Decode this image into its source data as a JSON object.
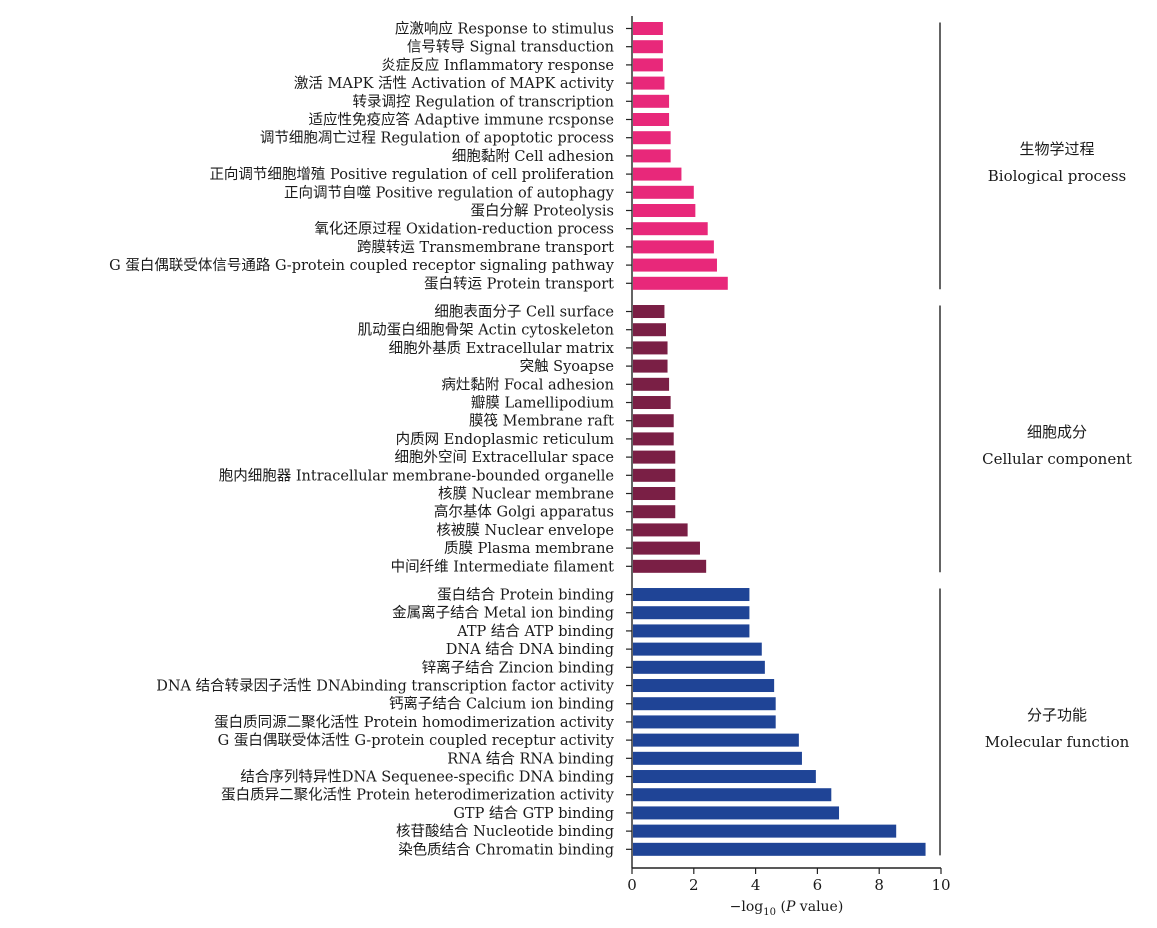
{
  "chart_data": {
    "type": "bar",
    "orientation": "horizontal",
    "xlabel": "−log10 (P value)",
    "xlabel_parts": {
      "prefix": "−log",
      "subscript": "10",
      "open": " (",
      "italic": "P",
      "suffix": " value)"
    },
    "xlim": [
      0,
      10
    ],
    "xticks": [
      "0",
      "2",
      "4",
      "6",
      "8",
      "10"
    ],
    "grid": false,
    "groups": [
      {
        "label_zh": "生物学过程",
        "label_en": "Biological process",
        "color": "#e8287a",
        "bars": [
          {
            "label": "应激响应 Response to stimulus",
            "value": 1.0
          },
          {
            "label": "信号转导 Signal transduction",
            "value": 1.0
          },
          {
            "label": "炎症反应 Inflammatory response",
            "value": 1.0
          },
          {
            "label": "激活 MAPK 活性 Activation of MAPK activity",
            "value": 1.05
          },
          {
            "label": "转录调控 Regulation of transcription",
            "value": 1.2
          },
          {
            "label": "适应性免疫应答 Adaptive immune rcsponse",
            "value": 1.2
          },
          {
            "label": "调节细胞凋亡过程 Regulation of apoptotic process",
            "value": 1.25
          },
          {
            "label": "细胞黏附 Cell adhesion",
            "value": 1.25
          },
          {
            "label": "正向调节细胞增殖 Positive regulation of cell proliferation",
            "value": 1.6
          },
          {
            "label": "正向调节自噬 Positive regulation of autophagy",
            "value": 2.0
          },
          {
            "label": "蛋白分解 Proteolysis",
            "value": 2.05
          },
          {
            "label": "氧化还原过程 Oxidation-reduction process",
            "value": 2.45
          },
          {
            "label": "跨膜转运 Transmembrane transport",
            "value": 2.65
          },
          {
            "label": "G 蛋白偶联受体信号通路 G-protein coupled receptor signaling pathway",
            "value": 2.75
          },
          {
            "label": "蛋白转运 Protein transport",
            "value": 3.1
          }
        ]
      },
      {
        "label_zh": "细胞成分",
        "label_en": "Cellular component",
        "color": "#7a1f45",
        "bars": [
          {
            "label": "细胞表面分子 Cell surface",
            "value": 1.05
          },
          {
            "label": "肌动蛋白细胞骨架 Actin cytoskeleton",
            "value": 1.1
          },
          {
            "label": "细胞外基质 Extracellular matrix",
            "value": 1.15
          },
          {
            "label": "突触 Syoapse",
            "value": 1.15
          },
          {
            "label": "病灶黏附 Focal adhesion",
            "value": 1.2
          },
          {
            "label": "瓣膜 Lamellipodium",
            "value": 1.25
          },
          {
            "label": "膜筏 Membrane raft",
            "value": 1.35
          },
          {
            "label": "内质网 Endoplasmic reticulum",
            "value": 1.35
          },
          {
            "label": "细胞外空间 Extracellular space",
            "value": 1.4
          },
          {
            "label": "胞内细胞器 Intracellular membrane-bounded organelle",
            "value": 1.4
          },
          {
            "label": "核膜 Nuclear membrane",
            "value": 1.4
          },
          {
            "label": "高尔基体 Golgi apparatus",
            "value": 1.4
          },
          {
            "label": "核被膜 Nuclear envelope",
            "value": 1.8
          },
          {
            "label": "质膜 Plasma membrane",
            "value": 2.2
          },
          {
            "label": "中间纤维 Intermediate filament",
            "value": 2.4
          }
        ]
      },
      {
        "label_zh": "分子功能",
        "label_en": "Molecular function",
        "color": "#1f4496",
        "bars": [
          {
            "label": "蛋白结合 Protein binding",
            "value": 3.8
          },
          {
            "label": "金属离子结合 Metal ion binding",
            "value": 3.8
          },
          {
            "label": "ATP 结合 ATP binding",
            "value": 3.8
          },
          {
            "label": "DNA 结合 DNA binding",
            "value": 4.2
          },
          {
            "label": "锌离子结合 Zincion binding",
            "value": 4.3
          },
          {
            "label": "DNA 结合转录因子活性 DNAbinding transcription factor activity",
            "value": 4.6
          },
          {
            "label": "钙离子结合 Calcium ion binding",
            "value": 4.65
          },
          {
            "label": "蛋白质同源二聚化活性 Protein homodimerization activity",
            "value": 4.65
          },
          {
            "label": "G 蛋白偶联受体活性 G-protein coupled receptur activity",
            "value": 5.4
          },
          {
            "label": "RNA 结合 RNA binding",
            "value": 5.5
          },
          {
            "label": "结合序列特异性DNA Sequenee-specific DNA binding",
            "value": 5.95
          },
          {
            "label": "蛋白质异二聚化活性 Protein heterodimerization activity",
            "value": 6.45
          },
          {
            "label": "GTP 结合 GTP binding",
            "value": 6.7
          },
          {
            "label": "核苷酸结合 Nucleotide binding",
            "value": 8.55
          },
          {
            "label": "染色质结合 Chromatin binding",
            "value": 9.5
          }
        ]
      }
    ]
  }
}
